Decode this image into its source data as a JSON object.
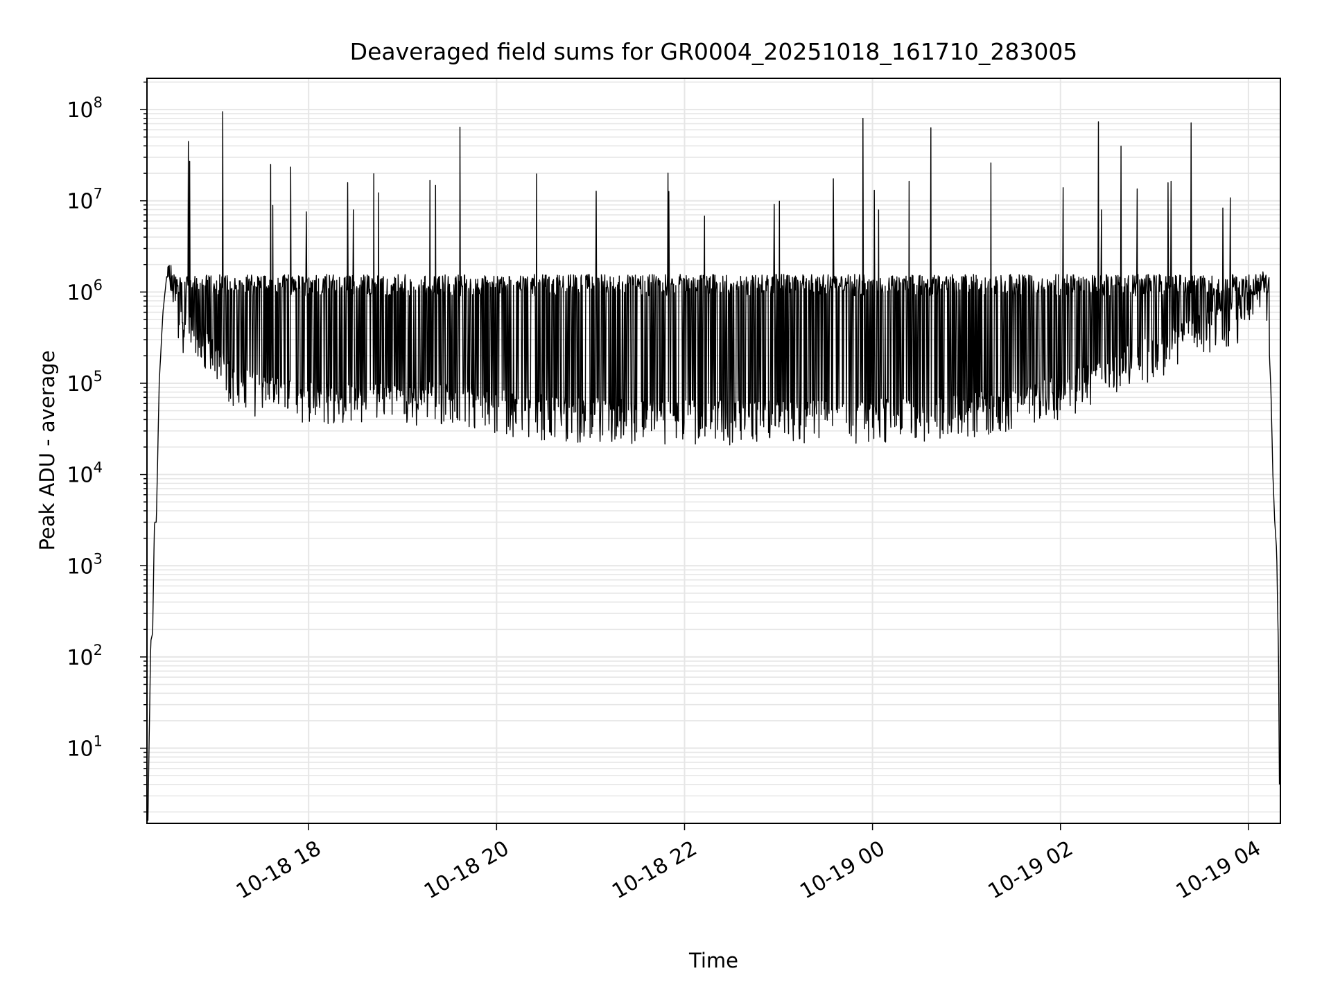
{
  "chart_data": {
    "type": "line",
    "title": "Deaveraged field sums for GR0004_20251018_161710_283005",
    "xlabel": "Time",
    "ylabel": "Peak ADU - average",
    "yscale": "log",
    "ylim": [
      1.5,
      220000000
    ],
    "xlim_hours": [
      16.28,
      28.34
    ],
    "x_ticks": [
      {
        "label": "10-18 18",
        "hour": 18
      },
      {
        "label": "10-18 20",
        "hour": 20
      },
      {
        "label": "10-18 22",
        "hour": 22
      },
      {
        "label": "10-19 00",
        "hour": 24
      },
      {
        "label": "10-19 02",
        "hour": 26
      },
      {
        "label": "10-19 04",
        "hour": 28
      }
    ],
    "y_ticks": [
      {
        "base": "10",
        "exp": "1",
        "value": 10
      },
      {
        "base": "10",
        "exp": "2",
        "value": 100
      },
      {
        "base": "10",
        "exp": "3",
        "value": 1000
      },
      {
        "base": "10",
        "exp": "4",
        "value": 10000
      },
      {
        "base": "10",
        "exp": "5",
        "value": 100000
      },
      {
        "base": "10",
        "exp": "6",
        "value": 1000000
      },
      {
        "base": "10",
        "exp": "7",
        "value": 10000000
      },
      {
        "base": "10",
        "exp": "8",
        "value": 100000000
      }
    ],
    "grid": true,
    "line_color": "#000000",
    "grid_color": "#e6e6e6",
    "series": [
      {
        "name": "deaveraged field sum",
        "points": [
          [
            16.29,
            1.6
          ],
          [
            16.32,
            150
          ],
          [
            16.34,
            180
          ],
          [
            16.36,
            3000
          ],
          [
            16.38,
            3000
          ],
          [
            16.41,
            100000
          ],
          [
            16.45,
            600000
          ],
          [
            16.49,
            1500000
          ],
          [
            16.53,
            1300000
          ],
          [
            16.58,
            900000
          ],
          [
            16.62,
            500000
          ],
          [
            16.68,
            350000
          ],
          [
            16.75,
            400000
          ],
          [
            16.82,
            300000
          ],
          [
            16.9,
            250000
          ],
          [
            17.0,
            180000
          ],
          [
            17.1,
            120000
          ],
          [
            17.2,
            100000
          ],
          [
            17.3,
            90000
          ],
          [
            17.4,
            80000
          ],
          [
            17.6,
            70000
          ],
          [
            17.8,
            65000
          ],
          [
            18.0,
            60000
          ],
          [
            18.3,
            58000
          ],
          [
            18.6,
            58000
          ],
          [
            18.9,
            60000
          ],
          [
            19.2,
            60000
          ],
          [
            19.5,
            60000
          ],
          [
            19.8,
            55000
          ],
          [
            20.0,
            50000
          ],
          [
            20.3,
            45000
          ],
          [
            20.6,
            42000
          ],
          [
            21.0,
            40000
          ],
          [
            21.5,
            38000
          ],
          [
            22.0,
            38000
          ],
          [
            22.5,
            38000
          ],
          [
            23.0,
            38000
          ],
          [
            23.5,
            38000
          ],
          [
            24.0,
            40000
          ],
          [
            24.5,
            40000
          ],
          [
            25.0,
            45000
          ],
          [
            25.5,
            55000
          ],
          [
            26.0,
            70000
          ],
          [
            26.5,
            120000
          ],
          [
            27.0,
            200000
          ],
          [
            27.4,
            300000
          ],
          [
            27.7,
            400000
          ],
          [
            27.9,
            500000
          ],
          [
            28.08,
            700000
          ],
          [
            28.13,
            1000000
          ],
          [
            28.16,
            1500000
          ],
          [
            28.18,
            1000000
          ],
          [
            28.2,
            500000
          ],
          [
            28.22,
            250000
          ],
          [
            28.24,
            80000
          ],
          [
            28.26,
            10000
          ],
          [
            28.28,
            3000
          ],
          [
            28.3,
            1500
          ],
          [
            28.32,
            100
          ],
          [
            28.33,
            4
          ]
        ]
      }
    ]
  }
}
